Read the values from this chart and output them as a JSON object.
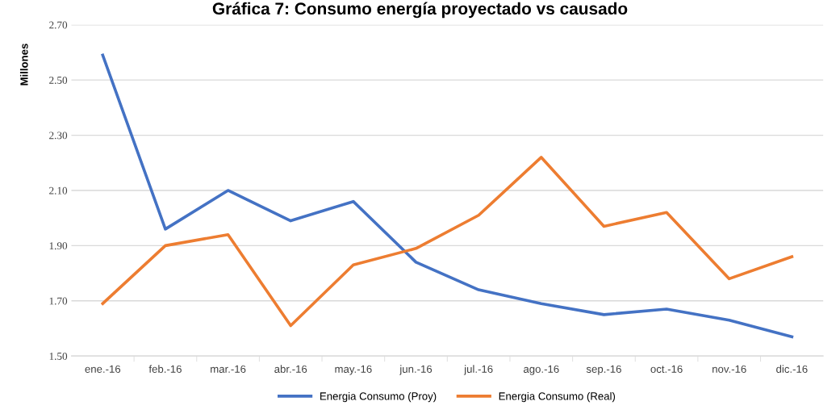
{
  "chart_data": {
    "type": "line",
    "title": "Gráfica 7: Consumo energía proyectado vs causado",
    "ylabel": "Millones",
    "categories": [
      "ene.-16",
      "feb.-16",
      "mar.-16",
      "abr.-16",
      "may.-16",
      "jun.-16",
      "jul.-16",
      "ago.-16",
      "sep.-16",
      "oct.-16",
      "nov.-16",
      "dic.-16"
    ],
    "series": [
      {
        "name": "Energia Consumo (Proy)",
        "color": "#4472c4",
        "values": [
          2.59,
          1.96,
          2.1,
          1.99,
          2.06,
          1.84,
          1.74,
          1.69,
          1.65,
          1.67,
          1.63,
          1.57
        ]
      },
      {
        "name": "Energia Consumo (Real)",
        "color": "#ed7d31",
        "values": [
          1.69,
          1.9,
          1.94,
          1.61,
          1.83,
          1.89,
          2.01,
          2.22,
          1.97,
          2.02,
          1.78,
          1.86
        ]
      }
    ],
    "ylim": [
      1.5,
      2.7
    ],
    "yticks": [
      {
        "value": 1.5,
        "label": "1.50"
      },
      {
        "value": 1.7,
        "label": "1.70"
      },
      {
        "value": 1.9,
        "label": "1.90"
      },
      {
        "value": 2.1,
        "label": "2.10"
      },
      {
        "value": 2.3,
        "label": "2.30"
      },
      {
        "value": 2.5,
        "label": "2.50"
      },
      {
        "value": 2.7,
        "label": "2.70"
      }
    ],
    "grid": "y",
    "legend": "bottom",
    "marker": "none",
    "line_style": "solid"
  }
}
